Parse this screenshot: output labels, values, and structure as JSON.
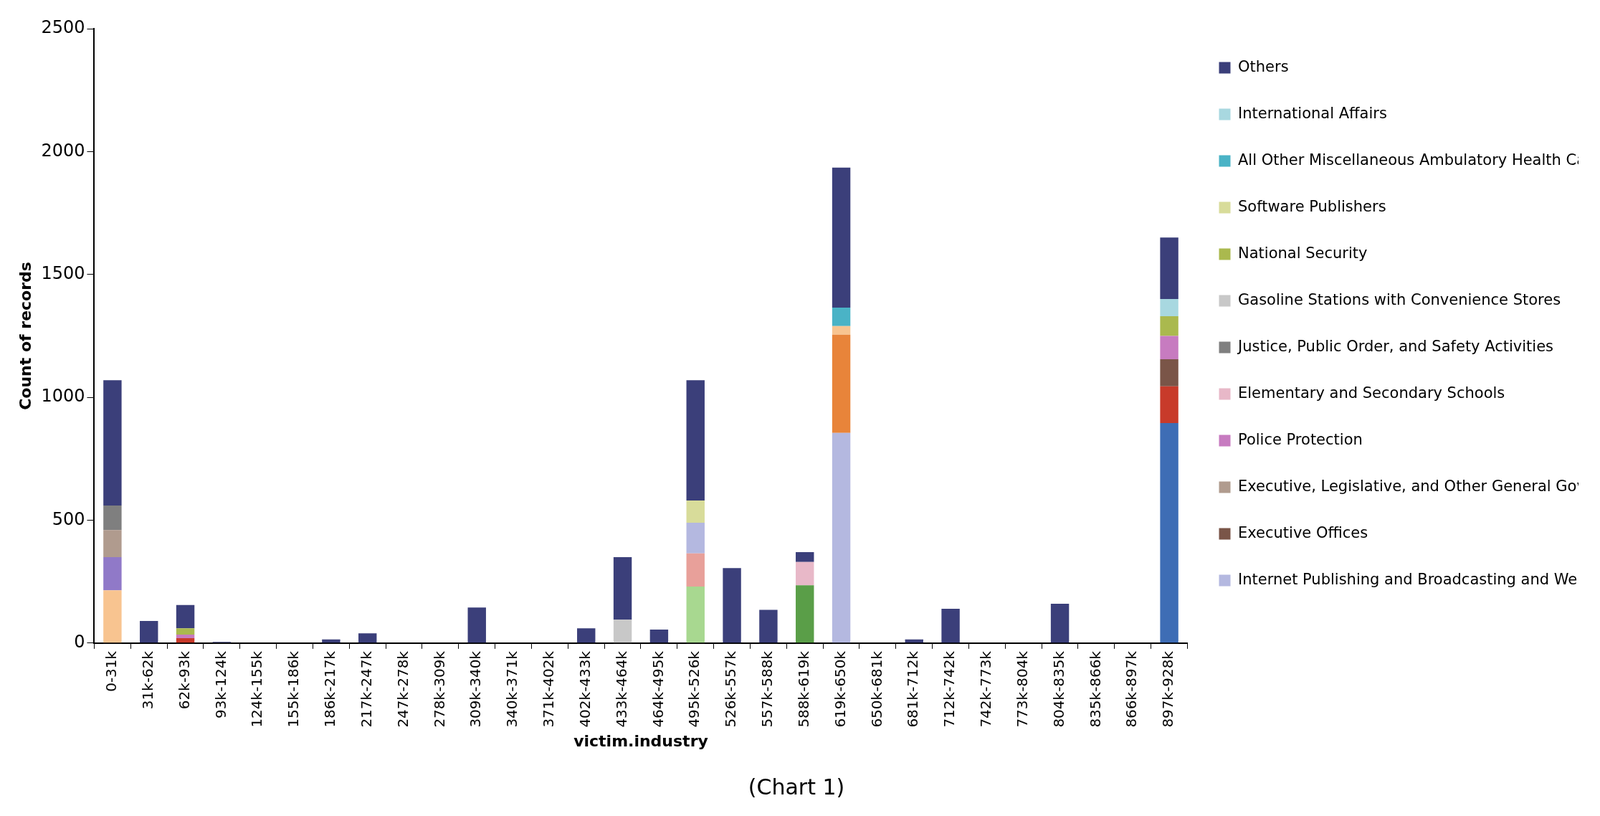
{
  "chart_data": {
    "type": "bar",
    "caption": "(Chart 1)",
    "x_label": "victim.industry",
    "y_label": "Count of records",
    "categories": [
      "0-31k",
      "31k-62k",
      "62k-93k",
      "93k-124k",
      "124k-155k",
      "155k-186k",
      "186k-217k",
      "217k-247k",
      "247k-278k",
      "278k-309k",
      "309k-340k",
      "340k-371k",
      "371k-402k",
      "402k-433k",
      "433k-464k",
      "464k-495k",
      "495k-526k",
      "526k-557k",
      "557k-588k",
      "588k-619k",
      "619k-650k",
      "650k-681k",
      "681k-712k",
      "712k-742k",
      "742k-773k",
      "773k-804k",
      "804k-835k",
      "835k-866k",
      "866k-897k",
      "897k-928k"
    ],
    "ylim": [
      0,
      2500
    ],
    "yticks": [
      0,
      500,
      1000,
      1500,
      2000,
      2500
    ],
    "stacked": true,
    "grid": false,
    "legend": "right",
    "series": [
      {
        "name": null,
        "color": "#3e6db5",
        "values": [
          0,
          0,
          0,
          0,
          0,
          0,
          0,
          0,
          0,
          0,
          0,
          0,
          0,
          0,
          0,
          0,
          0,
          0,
          0,
          0,
          0,
          0,
          0,
          0,
          0,
          0,
          0,
          0,
          0,
          895
        ]
      },
      {
        "name": null,
        "color": "#a8d890",
        "values": [
          0,
          0,
          0,
          0,
          0,
          0,
          0,
          0,
          0,
          0,
          0,
          0,
          0,
          0,
          0,
          0,
          230,
          0,
          0,
          0,
          0,
          0,
          0,
          0,
          0,
          0,
          0,
          0,
          0,
          0
        ]
      },
      {
        "name": null,
        "color": "#5a9e48",
        "values": [
          0,
          0,
          0,
          0,
          0,
          0,
          0,
          0,
          0,
          0,
          0,
          0,
          0,
          0,
          0,
          0,
          0,
          0,
          0,
          235,
          0,
          0,
          0,
          0,
          0,
          0,
          0,
          0,
          0,
          0
        ]
      },
      {
        "name": null,
        "color": "#c83a2a",
        "values": [
          0,
          0,
          20,
          0,
          0,
          0,
          0,
          0,
          0,
          0,
          0,
          0,
          0,
          0,
          0,
          0,
          0,
          0,
          0,
          0,
          0,
          0,
          0,
          0,
          0,
          0,
          0,
          0,
          0,
          150
        ]
      },
      {
        "name": null,
        "color": "#e8a09a",
        "values": [
          0,
          0,
          0,
          0,
          0,
          0,
          0,
          0,
          0,
          0,
          0,
          0,
          0,
          0,
          0,
          0,
          135,
          0,
          0,
          0,
          0,
          0,
          0,
          0,
          0,
          0,
          0,
          0,
          0,
          0
        ]
      },
      {
        "name": "Internet Publishing and Broadcasting and Web Search Portals",
        "color": "#b4b8e0",
        "values": [
          0,
          0,
          0,
          0,
          0,
          0,
          0,
          0,
          0,
          0,
          0,
          0,
          0,
          0,
          0,
          0,
          125,
          0,
          0,
          0,
          855,
          0,
          0,
          0,
          0,
          0,
          0,
          0,
          0,
          0
        ]
      },
      {
        "name": null,
        "color": "#e8843a",
        "values": [
          0,
          0,
          0,
          0,
          0,
          0,
          0,
          0,
          0,
          0,
          0,
          0,
          0,
          0,
          0,
          0,
          0,
          0,
          0,
          0,
          400,
          0,
          0,
          0,
          0,
          0,
          0,
          0,
          0,
          0
        ]
      },
      {
        "name": null,
        "color": "#f8c490",
        "values": [
          215,
          0,
          0,
          0,
          0,
          0,
          0,
          0,
          0,
          0,
          0,
          0,
          0,
          0,
          0,
          0,
          0,
          0,
          0,
          0,
          35,
          0,
          0,
          0,
          0,
          0,
          0,
          0,
          0,
          0
        ]
      },
      {
        "name": null,
        "color": "#9079c8",
        "values": [
          135,
          0,
          0,
          0,
          0,
          0,
          0,
          0,
          0,
          0,
          0,
          0,
          0,
          0,
          0,
          0,
          0,
          0,
          0,
          0,
          0,
          0,
          0,
          0,
          0,
          0,
          0,
          0,
          0,
          0
        ]
      },
      {
        "name": "Executive Offices",
        "color": "#7a5548",
        "values": [
          0,
          0,
          0,
          0,
          0,
          0,
          0,
          0,
          0,
          0,
          0,
          0,
          0,
          0,
          0,
          0,
          0,
          0,
          0,
          0,
          0,
          0,
          0,
          0,
          0,
          0,
          0,
          0,
          0,
          110
        ]
      },
      {
        "name": "Executive, Legislative, and Other General Government Support",
        "color": "#b09b8e",
        "values": [
          110,
          0,
          0,
          0,
          0,
          0,
          0,
          0,
          0,
          0,
          0,
          0,
          0,
          0,
          0,
          0,
          0,
          0,
          0,
          0,
          0,
          0,
          0,
          0,
          0,
          0,
          0,
          0,
          0,
          0
        ]
      },
      {
        "name": "Police Protection",
        "color": "#c77bc0",
        "values": [
          0,
          0,
          15,
          0,
          0,
          0,
          0,
          0,
          0,
          0,
          0,
          0,
          0,
          0,
          0,
          0,
          0,
          0,
          0,
          0,
          0,
          0,
          0,
          0,
          0,
          0,
          0,
          0,
          0,
          95
        ]
      },
      {
        "name": "Elementary and Secondary Schools",
        "color": "#e8b8c8",
        "values": [
          0,
          0,
          0,
          0,
          0,
          0,
          0,
          0,
          0,
          0,
          0,
          0,
          0,
          0,
          0,
          0,
          0,
          0,
          0,
          95,
          0,
          0,
          0,
          0,
          0,
          0,
          0,
          0,
          0,
          0
        ]
      },
      {
        "name": "Justice, Public Order, and Safety Activities",
        "color": "#7f7f7f",
        "values": [
          100,
          0,
          0,
          0,
          0,
          0,
          0,
          0,
          0,
          0,
          0,
          0,
          0,
          0,
          0,
          0,
          0,
          0,
          0,
          0,
          0,
          0,
          0,
          0,
          0,
          0,
          0,
          0,
          0,
          0
        ]
      },
      {
        "name": "Gasoline Stations with Convenience Stores",
        "color": "#c8c8c8",
        "values": [
          0,
          0,
          0,
          0,
          0,
          0,
          0,
          0,
          0,
          0,
          0,
          0,
          0,
          0,
          95,
          0,
          0,
          0,
          0,
          0,
          0,
          0,
          0,
          0,
          0,
          0,
          0,
          0,
          0,
          0
        ]
      },
      {
        "name": "National Security",
        "color": "#aab94e",
        "values": [
          0,
          0,
          25,
          0,
          0,
          0,
          0,
          0,
          0,
          0,
          0,
          0,
          0,
          0,
          0,
          0,
          0,
          0,
          0,
          0,
          0,
          0,
          0,
          0,
          0,
          0,
          0,
          0,
          0,
          80
        ]
      },
      {
        "name": "Software Publishers",
        "color": "#d8dc9a",
        "values": [
          0,
          0,
          0,
          0,
          0,
          0,
          0,
          0,
          0,
          0,
          0,
          0,
          0,
          0,
          0,
          0,
          90,
          0,
          0,
          0,
          0,
          0,
          0,
          0,
          0,
          0,
          0,
          0,
          0,
          0
        ]
      },
      {
        "name": "All Other Miscellaneous Ambulatory Health Care Services",
        "color": "#4ab3c6",
        "values": [
          0,
          0,
          0,
          0,
          0,
          0,
          0,
          0,
          0,
          0,
          0,
          0,
          0,
          0,
          0,
          0,
          0,
          0,
          0,
          0,
          75,
          0,
          0,
          0,
          0,
          0,
          0,
          0,
          0,
          0
        ]
      },
      {
        "name": "International Affairs",
        "color": "#a8d8e0",
        "values": [
          0,
          0,
          0,
          0,
          0,
          0,
          0,
          0,
          0,
          0,
          0,
          0,
          0,
          0,
          0,
          0,
          0,
          0,
          0,
          0,
          0,
          0,
          0,
          0,
          0,
          0,
          0,
          0,
          0,
          70
        ]
      },
      {
        "name": "Others",
        "color": "#3b3f7a",
        "values": [
          510,
          90,
          95,
          5,
          0,
          0,
          15,
          40,
          0,
          0,
          145,
          0,
          0,
          60,
          255,
          55,
          490,
          305,
          135,
          40,
          570,
          0,
          15,
          140,
          0,
          0,
          160,
          0,
          0,
          250
        ]
      }
    ]
  }
}
